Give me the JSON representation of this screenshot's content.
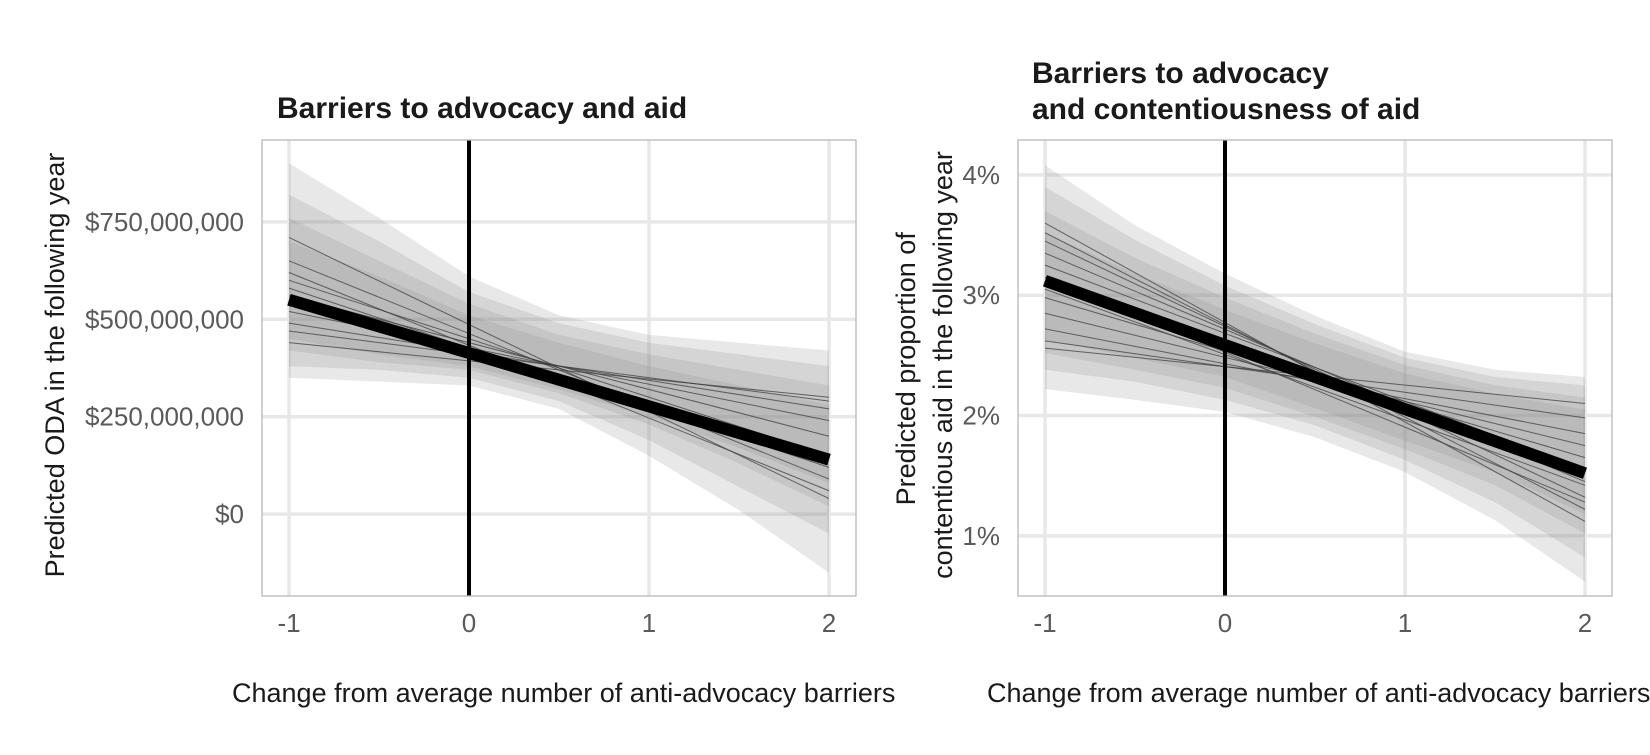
{
  "chart_data": [
    {
      "type": "line",
      "title": [
        "Barriers to advocacy and aid"
      ],
      "xlabel": "Change from average number of anti-advocacy barriers",
      "ylabel": [
        "Predicted ODA in the following year"
      ],
      "x_ticks": [
        -1,
        0,
        1,
        2
      ],
      "x_tick_labels": [
        "-1",
        "0",
        "1",
        "2"
      ],
      "y_ticks": [
        0,
        250000000,
        500000000,
        750000000
      ],
      "y_tick_labels": [
        "$0",
        "$250,000,000",
        "$500,000,000",
        "$750,000,000"
      ],
      "xlim": [
        -1.15,
        2.15
      ],
      "ylim": [
        -210000000,
        960000000
      ],
      "vline_x": 0,
      "grid": true,
      "series": [
        {
          "type": "mean_line",
          "x": [
            -1,
            2
          ],
          "y": [
            550000000,
            140000000
          ]
        },
        {
          "type": "draw_lines",
          "x": [
            -1,
            2
          ],
          "y_pairs": [
            [
              710000000,
              40000000
            ],
            [
              650000000,
              90000000
            ],
            [
              600000000,
              150000000
            ],
            [
              560000000,
              200000000
            ],
            [
              520000000,
              240000000
            ],
            [
              490000000,
              270000000
            ],
            [
              470000000,
              290000000
            ],
            [
              440000000,
              300000000
            ],
            [
              580000000,
              120000000
            ],
            [
              620000000,
              60000000
            ]
          ]
        },
        {
          "type": "ribbon",
          "x": [
            -1,
            -0.5,
            0,
            0.5,
            1,
            1.5,
            2
          ],
          "lower": [
            350000000,
            340000000,
            330000000,
            270000000,
            150000000,
            10000000,
            -150000000
          ],
          "upper": [
            900000000,
            760000000,
            610000000,
            510000000,
            460000000,
            440000000,
            420000000
          ]
        },
        {
          "type": "ribbon",
          "x": [
            -1,
            -0.5,
            0,
            0.5,
            1,
            1.5,
            2
          ],
          "lower": [
            380000000,
            370000000,
            350000000,
            290000000,
            190000000,
            70000000,
            -50000000
          ],
          "upper": [
            820000000,
            700000000,
            570000000,
            490000000,
            440000000,
            410000000,
            380000000
          ]
        },
        {
          "type": "ribbon",
          "x": [
            -1,
            -0.5,
            0,
            0.5,
            1,
            1.5,
            2
          ],
          "lower": [
            420000000,
            390000000,
            370000000,
            310000000,
            230000000,
            130000000,
            20000000
          ],
          "upper": [
            760000000,
            650000000,
            540000000,
            460000000,
            410000000,
            370000000,
            330000000
          ]
        },
        {
          "type": "ribbon",
          "x": [
            -1,
            -0.5,
            0,
            0.5,
            1,
            1.5,
            2
          ],
          "lower": [
            450000000,
            410000000,
            380000000,
            320000000,
            250000000,
            170000000,
            80000000
          ],
          "upper": [
            700000000,
            610000000,
            510000000,
            440000000,
            380000000,
            330000000,
            280000000
          ]
        }
      ]
    },
    {
      "type": "line",
      "title": [
        "Barriers to advocacy",
        "and contentiousness of aid"
      ],
      "xlabel": "Change from average number of anti-advocacy barriers",
      "ylabel": [
        "Predicted proportion of",
        "contentious aid in the following year"
      ],
      "x_ticks": [
        -1,
        0,
        1,
        2
      ],
      "x_tick_labels": [
        "-1",
        "0",
        "1",
        "2"
      ],
      "y_ticks": [
        0.01,
        0.02,
        0.03,
        0.04
      ],
      "y_tick_labels": [
        "1%",
        "2%",
        "3%",
        "4%"
      ],
      "xlim": [
        -1.15,
        2.15
      ],
      "ylim": [
        0.005,
        0.0429
      ],
      "vline_x": 0,
      "grid": true,
      "series": [
        {
          "type": "mean_line",
          "x": [
            -1,
            2
          ],
          "y": [
            0.0312,
            0.0152
          ]
        },
        {
          "type": "draw_lines",
          "x": [
            -1,
            2
          ],
          "y_pairs": [
            [
              0.036,
              0.0112
            ],
            [
              0.0352,
              0.0122
            ],
            [
              0.0345,
              0.0132
            ],
            [
              0.0335,
              0.0145
            ],
            [
              0.0325,
              0.0155
            ],
            [
              0.0298,
              0.0165
            ],
            [
              0.0285,
              0.0175
            ],
            [
              0.0272,
              0.0185
            ],
            [
              0.0262,
              0.0198
            ],
            [
              0.0256,
              0.021
            ],
            [
              0.0305,
              0.0142
            ],
            [
              0.0315,
              0.0128
            ]
          ]
        },
        {
          "type": "ribbon",
          "x": [
            -1,
            -0.5,
            0,
            0.5,
            1,
            1.5,
            2
          ],
          "lower": [
            0.0222,
            0.0213,
            0.0203,
            0.0182,
            0.0153,
            0.0113,
            0.0062
          ],
          "upper": [
            0.0408,
            0.0358,
            0.0318,
            0.0283,
            0.0253,
            0.0238,
            0.0232
          ]
        },
        {
          "type": "ribbon",
          "x": [
            -1,
            -0.5,
            0,
            0.5,
            1,
            1.5,
            2
          ],
          "lower": [
            0.0238,
            0.0228,
            0.0213,
            0.0192,
            0.0163,
            0.0128,
            0.0082
          ],
          "upper": [
            0.039,
            0.0346,
            0.0308,
            0.0276,
            0.0248,
            0.0232,
            0.0225
          ]
        },
        {
          "type": "ribbon",
          "x": [
            -1,
            -0.5,
            0,
            0.5,
            1,
            1.5,
            2
          ],
          "lower": [
            0.0252,
            0.0238,
            0.0223,
            0.0199,
            0.0172,
            0.0142,
            0.0102
          ],
          "upper": [
            0.037,
            0.0331,
            0.0298,
            0.0268,
            0.0242,
            0.0225,
            0.0215
          ]
        },
        {
          "type": "ribbon",
          "x": [
            -1,
            -0.5,
            0,
            0.5,
            1,
            1.5,
            2
          ],
          "lower": [
            0.0263,
            0.0248,
            0.0232,
            0.0206,
            0.0179,
            0.0153,
            0.0118
          ],
          "upper": [
            0.0352,
            0.0318,
            0.0288,
            0.026,
            0.0235,
            0.0218,
            0.0205
          ]
        }
      ]
    }
  ]
}
